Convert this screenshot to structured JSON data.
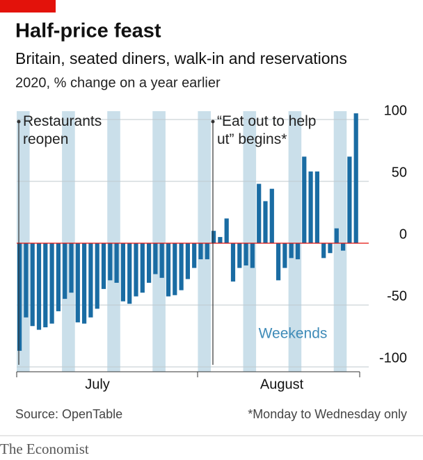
{
  "chart_data": {
    "type": "bar",
    "title": "Half-price feast",
    "subtitle": "Britain, seated diners, walk-in and reservations",
    "unit_label": "2020, % change on a year earlier",
    "categories": [
      null,
      null,
      null,
      null,
      null,
      null,
      null,
      null,
      null,
      null,
      null,
      null,
      null,
      null,
      null,
      null,
      null,
      null,
      null,
      null,
      null,
      null,
      null,
      null,
      null,
      null,
      null,
      null,
      null,
      null,
      null,
      null,
      null,
      null,
      null,
      null,
      null,
      null,
      null,
      null,
      null,
      null,
      null,
      null,
      null,
      null,
      null,
      null,
      null,
      null,
      null,
      null,
      null
    ],
    "values": [
      -87,
      -60,
      -67,
      -70,
      -68,
      -65,
      -55,
      -45,
      -40,
      -64,
      -65,
      -60,
      -53,
      -37,
      -30,
      -32,
      -47,
      -49,
      -43,
      -40,
      -32,
      -25,
      -28,
      -43,
      -42,
      -38,
      -29,
      -20,
      -13,
      -13,
      10,
      5,
      20,
      -31,
      -20,
      -18,
      -20,
      48,
      34,
      44,
      -30,
      -20,
      -12,
      -13,
      70,
      58,
      58,
      -12,
      -8,
      12,
      -6,
      70,
      105
    ],
    "color": "#1a6ca3",
    "weekend_color": "#cadfea",
    "months": [
      "July",
      "August"
    ],
    "annotations": [
      "Restaurants reopen",
      "“Eat out to help out” begins*"
    ],
    "weekend_label": "Weekends",
    "ylim": [
      -100,
      100
    ],
    "yticks": [
      -100,
      -50,
      0,
      50,
      100
    ],
    "grid": true,
    "source": "Source: OpenTable",
    "note": "*Monday to Wednesday only",
    "brand": "The Economist"
  }
}
